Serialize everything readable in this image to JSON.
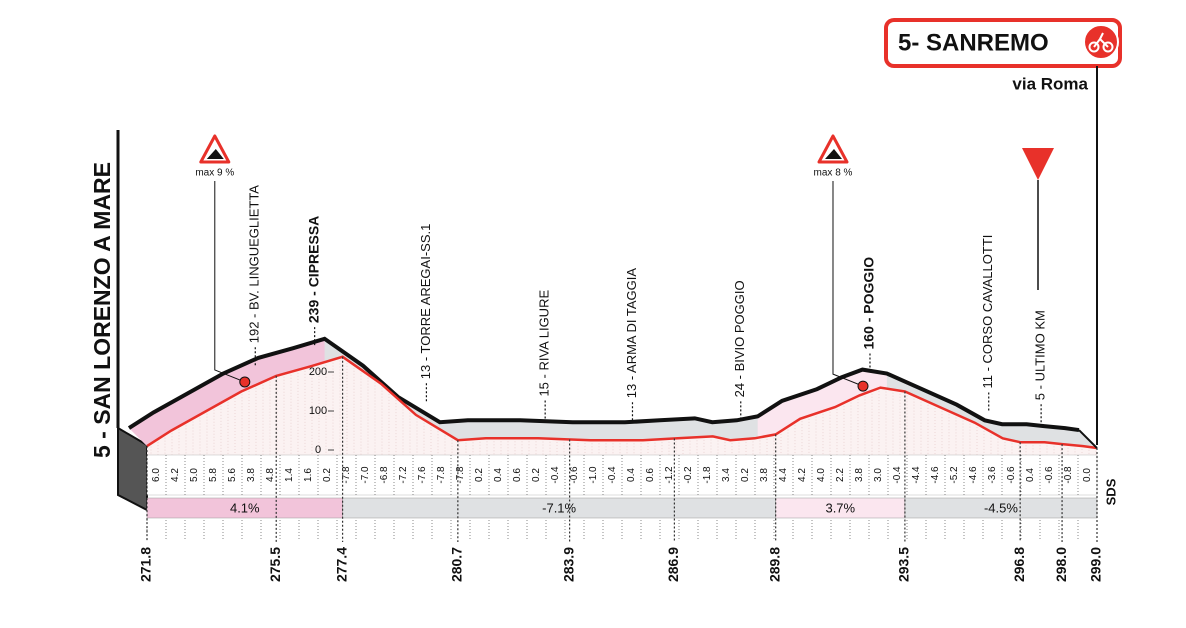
{
  "start": "5 - SAN LORENZO A MARE",
  "finish": {
    "title": "5- SANREMO",
    "subtitle": "via Roma"
  },
  "watermark": "SDS",
  "chart_data": {
    "type": "profile",
    "x": [
      271.8,
      272.5,
      273.5,
      274.5,
      275.5,
      276.5,
      277.4,
      278.5,
      279.5,
      280.7,
      281.5,
      283,
      284.5,
      286,
      287,
      288,
      288.5,
      289.2,
      289.8,
      290.5,
      291.5,
      292.2,
      292.8,
      293.5,
      294.5,
      295.5,
      296.3,
      296.8,
      297.5,
      298,
      298.6,
      299
    ],
    "values": [
      10,
      50,
      100,
      150,
      190,
      215,
      239,
      170,
      90,
      25,
      30,
      30,
      25,
      25,
      30,
      35,
      25,
      30,
      40,
      80,
      110,
      140,
      160,
      150,
      110,
      70,
      30,
      20,
      20,
      15,
      10,
      5
    ],
    "xlim": [
      271.8,
      299
    ],
    "ylim": [
      0,
      250
    ],
    "yticks": [
      0,
      100,
      200
    ],
    "xticks": [
      271.8,
      275.5,
      277.4,
      280.7,
      283.9,
      286.9,
      289.8,
      293.5,
      296.8,
      {
        "value": 298,
        "label": "298.0"
      },
      {
        "value": 299,
        "label": "299.0"
      }
    ],
    "gradients": [
      "6.0",
      "4.2",
      "5.0",
      "5.8",
      "5.6",
      "3.8",
      "4.8",
      "1.4",
      "1.6",
      "0.2",
      "-7.8",
      "-7.0",
      "-6.8",
      "-7.2",
      "-7.6",
      "-7.8",
      "-7.8",
      "0.2",
      "0.4",
      "0.6",
      "0.2",
      "-0.4",
      "-0.6",
      "-1.0",
      "-0.4",
      "0.4",
      "0.6",
      "-1.2",
      "-0.2",
      "-1.8",
      "3.4",
      "0.2",
      "3.8",
      "4.4",
      "4.2",
      "4.0",
      "2.2",
      "3.8",
      "3.0",
      "-0.4",
      "-4.4",
      "-4.6",
      "-5.2",
      "-4.6",
      "-3.6",
      "-0.6",
      "0.4",
      "-0.6",
      "-0.8",
      "0.0"
    ],
    "segments": [
      {
        "label": "4.1%",
        "from": 271.8,
        "to": 277.4,
        "color": "#f2c4da"
      },
      {
        "label": "-7.1%",
        "from": 277.4,
        "to": 289.8,
        "color": "#dfe1e3"
      },
      {
        "label": "3.7%",
        "from": 289.8,
        "to": 293.5,
        "color": "#fbe6ef"
      },
      {
        "label": "-4.5%",
        "from": 293.5,
        "to": 299,
        "color": "#dfe1e3"
      }
    ],
    "landmarks": [
      {
        "label": "192 - BV. LINGUEGLIETTA",
        "km": 274.9
      },
      {
        "label": "239 - CIPRESSA",
        "km": 276.6,
        "bold": true
      },
      {
        "label": "13 - TORRE AREGAI-SS.1",
        "km": 279.8
      },
      {
        "label": "15 - RIVA LIGURE",
        "km": 283.2
      },
      {
        "label": "13 - ARMA DI TAGGIA",
        "km": 285.7
      },
      {
        "label": "24 - BIVIO POGGIO",
        "km": 288.8
      },
      {
        "label": "160 - POGGIO",
        "km": 292.5,
        "bold": true
      },
      {
        "label": "11 - CORSO CAVALLOTTI",
        "km": 295.9
      },
      {
        "label": "5 - ULTIMO KM",
        "km": 297.4
      }
    ],
    "climbs": [
      {
        "label": "max 9 %",
        "km": 274.6
      },
      {
        "label": "max 8 %",
        "km": 292.3
      }
    ],
    "line_color": "#e8312a"
  }
}
